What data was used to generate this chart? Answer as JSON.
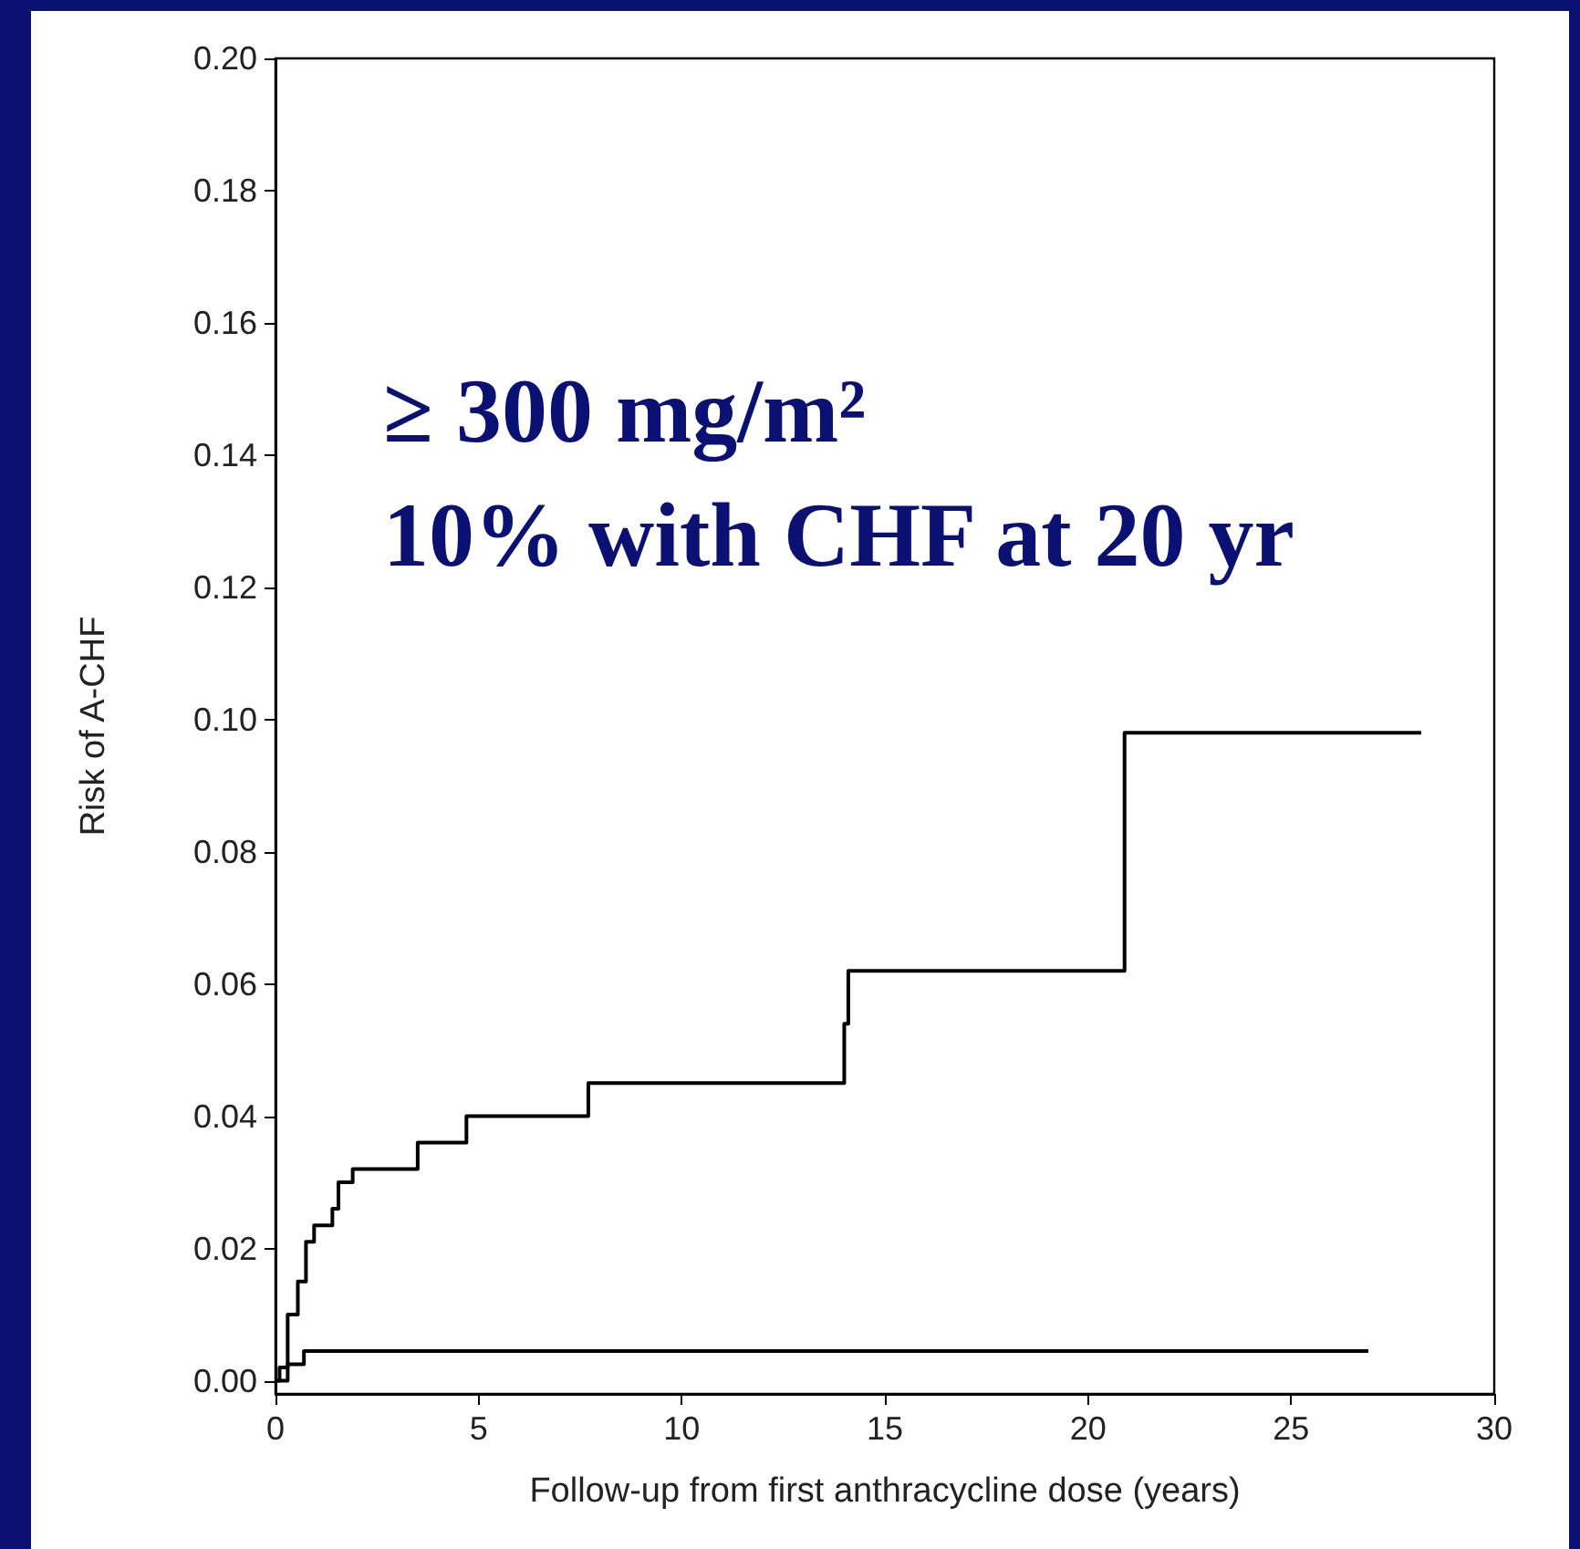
{
  "chart_data": {
    "type": "step",
    "xlabel": "Follow-up from first anthracycline dose (years)",
    "ylabel": "Risk of A-CHF",
    "annotations": [
      "≥ 300 mg/m²",
      "10% with CHF at 20 yr"
    ],
    "xlim": [
      0,
      30
    ],
    "xticks": [
      0,
      5,
      10,
      15,
      20,
      25,
      30
    ],
    "ylim": [
      -0.002,
      0.2
    ],
    "yticks": [
      {
        "value": 0,
        "label": "0.00"
      },
      {
        "value": 0.02,
        "label": "0.02"
      },
      {
        "value": 0.04,
        "label": "0.04"
      },
      {
        "value": 0.06,
        "label": "0.06"
      },
      {
        "value": 0.08,
        "label": "0.08"
      },
      {
        "value": 0.1,
        "label": "0.10"
      },
      {
        "value": 0.12,
        "label": "0.12"
      },
      {
        "value": 0.14,
        "label": "0.14"
      },
      {
        "value": 0.16,
        "label": "0.16"
      },
      {
        "value": 0.18,
        "label": "0.18"
      },
      {
        "value": 0.2,
        "label": "0.20"
      }
    ],
    "grid": false,
    "marker": "none",
    "line_style": "solid",
    "series": [
      {
        "color": "#000000",
        "x": [
          0,
          0.1,
          0.3,
          0.55,
          0.75,
          0.95,
          1.4,
          1.55,
          1.9,
          3.5,
          4.7,
          7.7,
          14.0,
          14.1,
          20.9,
          28.2
        ],
        "values": [
          0,
          0.002,
          0.01,
          0.015,
          0.021,
          0.0235,
          0.026,
          0.03,
          0.032,
          0.036,
          0.04,
          0.045,
          0.054,
          0.062,
          0.098,
          0.098
        ]
      },
      {
        "color": "#000000",
        "x": [
          0,
          0.3,
          0.7,
          26.9
        ],
        "values": [
          0,
          0.0025,
          0.0045,
          0.0045
        ]
      }
    ]
  }
}
